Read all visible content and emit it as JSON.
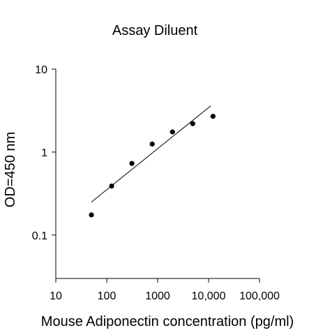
{
  "chart_data": {
    "type": "scatter",
    "title": "Assay Diluent",
    "xlabel": "Mouse Adiponectin concentration (pg/ml)",
    "ylabel": "OD=450 nm",
    "x_scale": "log",
    "y_scale": "log",
    "xlim": [
      10,
      100000
    ],
    "ylim": [
      0.03,
      10
    ],
    "x_ticks": [
      10,
      100,
      1000,
      10000,
      100000
    ],
    "x_tick_labels": [
      "10",
      "100",
      "1000",
      "10,000",
      "100,000"
    ],
    "y_ticks": [
      0.1,
      1,
      10
    ],
    "y_tick_labels": [
      "0.1",
      "1",
      "10"
    ],
    "grid": false,
    "series": [
      {
        "x": [
          50,
          125,
          312,
          781,
          1953,
          4883,
          12207
        ],
        "y": [
          0.175,
          0.39,
          0.73,
          1.25,
          1.75,
          2.2,
          2.7
        ]
      }
    ],
    "fit_line": {
      "x": [
        50,
        11000
      ],
      "y": [
        0.25,
        3.6
      ]
    },
    "colors": {
      "points": "#000000",
      "line": "#000000",
      "axes": "#000000"
    }
  }
}
